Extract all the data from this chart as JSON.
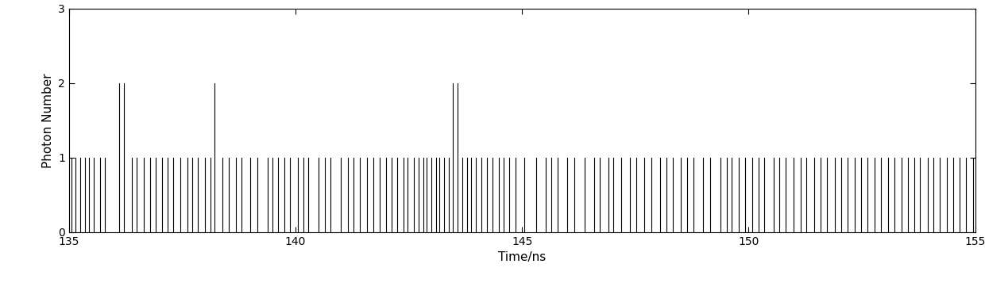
{
  "xlim": [
    135,
    155
  ],
  "ylim": [
    0,
    3
  ],
  "xlabel": "Time/ns",
  "ylabel": "Photon Number",
  "xticks": [
    135,
    140,
    145,
    150,
    155
  ],
  "yticks": [
    0,
    1,
    2,
    3
  ],
  "background_color": "#ffffff",
  "line_color": "#000000",
  "linewidth": 0.8,
  "spikes": [
    [
      135.05,
      1
    ],
    [
      135.15,
      1
    ],
    [
      135.25,
      1
    ],
    [
      135.35,
      1
    ],
    [
      135.45,
      1
    ],
    [
      135.55,
      1
    ],
    [
      135.68,
      1
    ],
    [
      135.8,
      1
    ],
    [
      136.1,
      2
    ],
    [
      136.22,
      2
    ],
    [
      136.38,
      1
    ],
    [
      136.5,
      1
    ],
    [
      136.65,
      1
    ],
    [
      136.8,
      1
    ],
    [
      136.92,
      1
    ],
    [
      137.05,
      1
    ],
    [
      137.18,
      1
    ],
    [
      137.3,
      1
    ],
    [
      137.45,
      1
    ],
    [
      137.62,
      1
    ],
    [
      137.72,
      1
    ],
    [
      137.85,
      1
    ],
    [
      138.0,
      1
    ],
    [
      138.12,
      1
    ],
    [
      138.22,
      2
    ],
    [
      138.38,
      1
    ],
    [
      138.52,
      1
    ],
    [
      138.68,
      1
    ],
    [
      138.8,
      1
    ],
    [
      139.0,
      1
    ],
    [
      139.15,
      1
    ],
    [
      139.38,
      1
    ],
    [
      139.5,
      1
    ],
    [
      139.62,
      1
    ],
    [
      139.75,
      1
    ],
    [
      139.88,
      1
    ],
    [
      140.05,
      1
    ],
    [
      140.18,
      1
    ],
    [
      140.28,
      1
    ],
    [
      140.5,
      1
    ],
    [
      140.65,
      1
    ],
    [
      140.78,
      1
    ],
    [
      141.0,
      1
    ],
    [
      141.15,
      1
    ],
    [
      141.28,
      1
    ],
    [
      141.42,
      1
    ],
    [
      141.58,
      1
    ],
    [
      141.72,
      1
    ],
    [
      141.85,
      1
    ],
    [
      142.0,
      1
    ],
    [
      142.12,
      1
    ],
    [
      142.25,
      1
    ],
    [
      142.38,
      1
    ],
    [
      142.48,
      1
    ],
    [
      142.62,
      1
    ],
    [
      142.72,
      1
    ],
    [
      142.82,
      1
    ],
    [
      142.9,
      1
    ],
    [
      143.0,
      1
    ],
    [
      143.1,
      1
    ],
    [
      143.18,
      1
    ],
    [
      143.28,
      1
    ],
    [
      143.38,
      1
    ],
    [
      143.48,
      2
    ],
    [
      143.58,
      2
    ],
    [
      143.68,
      1
    ],
    [
      143.78,
      1
    ],
    [
      143.88,
      1
    ],
    [
      143.98,
      1
    ],
    [
      144.1,
      1
    ],
    [
      144.22,
      1
    ],
    [
      144.35,
      1
    ],
    [
      144.48,
      1
    ],
    [
      144.6,
      1
    ],
    [
      144.72,
      1
    ],
    [
      144.85,
      1
    ],
    [
      145.05,
      1
    ],
    [
      145.32,
      1
    ],
    [
      145.52,
      1
    ],
    [
      145.65,
      1
    ],
    [
      145.78,
      1
    ],
    [
      146.0,
      1
    ],
    [
      146.15,
      1
    ],
    [
      146.38,
      1
    ],
    [
      146.6,
      1
    ],
    [
      146.72,
      1
    ],
    [
      146.9,
      1
    ],
    [
      147.02,
      1
    ],
    [
      147.18,
      1
    ],
    [
      147.38,
      1
    ],
    [
      147.52,
      1
    ],
    [
      147.7,
      1
    ],
    [
      147.85,
      1
    ],
    [
      148.05,
      1
    ],
    [
      148.18,
      1
    ],
    [
      148.32,
      1
    ],
    [
      148.5,
      1
    ],
    [
      148.65,
      1
    ],
    [
      148.78,
      1
    ],
    [
      149.0,
      1
    ],
    [
      149.15,
      1
    ],
    [
      149.38,
      1
    ],
    [
      149.52,
      1
    ],
    [
      149.62,
      1
    ],
    [
      149.78,
      1
    ],
    [
      149.92,
      1
    ],
    [
      150.08,
      1
    ],
    [
      150.22,
      1
    ],
    [
      150.35,
      1
    ],
    [
      150.55,
      1
    ],
    [
      150.68,
      1
    ],
    [
      150.82,
      1
    ],
    [
      151.0,
      1
    ],
    [
      151.15,
      1
    ],
    [
      151.28,
      1
    ],
    [
      151.45,
      1
    ],
    [
      151.58,
      1
    ],
    [
      151.72,
      1
    ],
    [
      151.9,
      1
    ],
    [
      152.05,
      1
    ],
    [
      152.18,
      1
    ],
    [
      152.35,
      1
    ],
    [
      152.48,
      1
    ],
    [
      152.62,
      1
    ],
    [
      152.78,
      1
    ],
    [
      152.92,
      1
    ],
    [
      153.08,
      1
    ],
    [
      153.22,
      1
    ],
    [
      153.38,
      1
    ],
    [
      153.52,
      1
    ],
    [
      153.65,
      1
    ],
    [
      153.78,
      1
    ],
    [
      153.95,
      1
    ],
    [
      154.08,
      1
    ],
    [
      154.22,
      1
    ],
    [
      154.38,
      1
    ],
    [
      154.52,
      1
    ],
    [
      154.65,
      1
    ],
    [
      154.8,
      1
    ],
    [
      154.95,
      1
    ]
  ]
}
